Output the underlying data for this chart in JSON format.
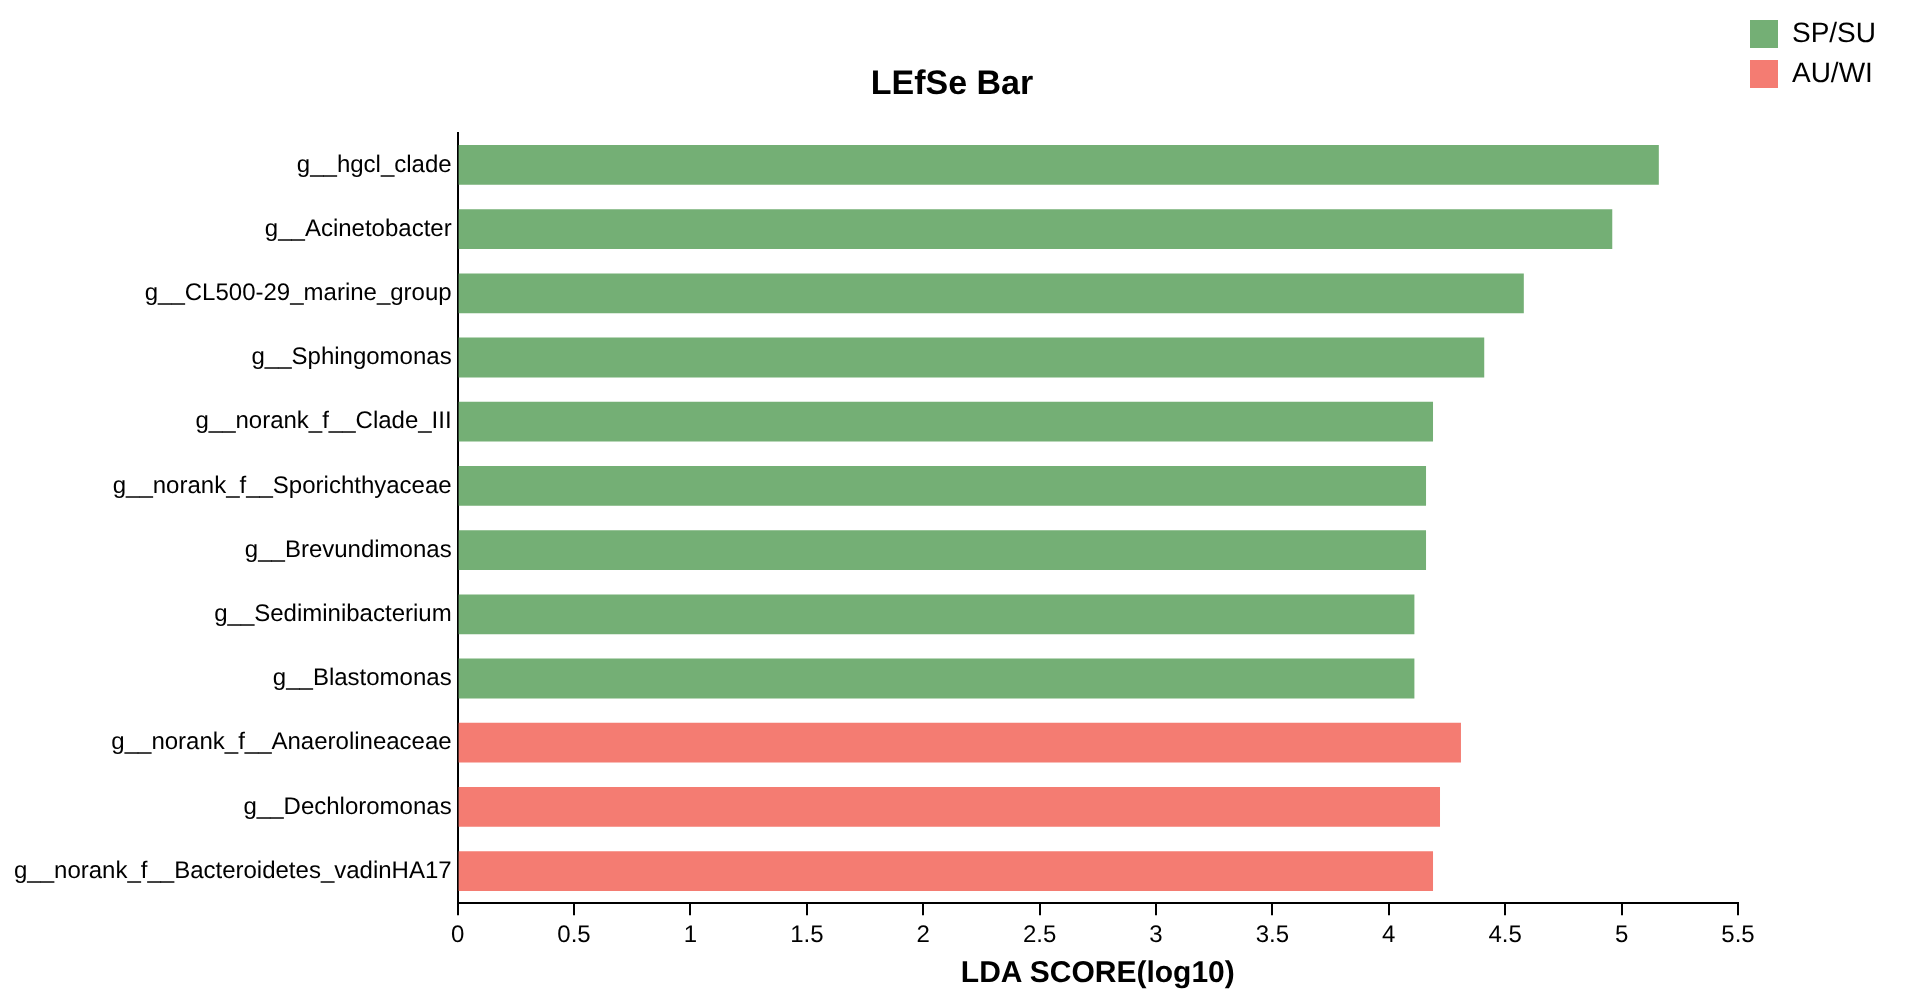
{
  "chart_data": {
    "type": "bar",
    "orientation": "horizontal",
    "stacked": true,
    "title": "LEfSe Bar",
    "xlabel": "LDA SCORE(log10)",
    "categories": [
      "g__hgcl_clade",
      "g__Acinetobacter",
      "g__CL500-29_marine_group",
      "g__Sphingomonas",
      "g__norank_f__Clade_III",
      "g__norank_f__Sporichthyaceae",
      "g__Brevundimonas",
      "g__Sediminibacterium",
      "g__Blastomonas",
      "g__norank_f__Anaerolineaceae",
      "g__Dechloromonas",
      "g__norank_f__Bacteroidetes_vadinHA17"
    ],
    "series": [
      {
        "name": "SP/SU",
        "color": "#74af75",
        "values": [
          5.16,
          4.96,
          4.58,
          4.41,
          4.19,
          4.16,
          4.16,
          4.11,
          4.11,
          null,
          null,
          null
        ]
      },
      {
        "name": "AU/WI",
        "color": "#f47c72",
        "values": [
          null,
          null,
          null,
          null,
          null,
          null,
          null,
          null,
          null,
          4.31,
          4.22,
          4.19
        ]
      }
    ],
    "xlim": [
      0,
      5.5
    ],
    "xticks": [
      0,
      0.5,
      1,
      1.5,
      2,
      2.5,
      3,
      3.5,
      4,
      4.5,
      5,
      5.5
    ],
    "grid": false,
    "legend": "top right"
  }
}
